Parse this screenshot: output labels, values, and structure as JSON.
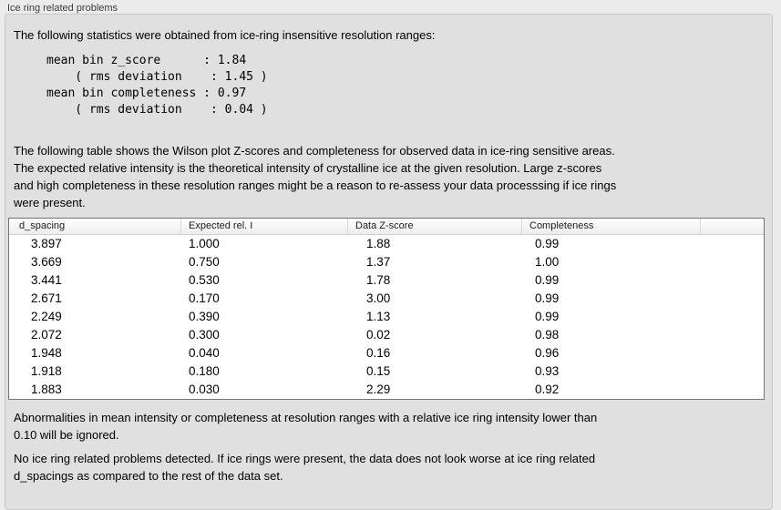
{
  "section": {
    "title": "Ice ring related problems"
  },
  "intro": "The following statistics were obtained from ice-ring insensitive resolution ranges:",
  "statistics": {
    "mean_bin_z_score": "1.84",
    "z_score_rms_deviation": "1.45",
    "mean_bin_completeness": "0.97",
    "completeness_rms_deviation": "0.04",
    "block_text": "mean bin z_score      : 1.84\n    ( rms deviation    : 1.45 )\nmean bin completeness : 0.97\n    ( rms deviation    : 0.04 )"
  },
  "table_description": "The following table shows the Wilson plot Z-scores and completeness for observed data in ice-ring sensitive areas.\nThe expected relative intensity is the theoretical intensity of crystalline ice at the given resolution. Large z-scores\nand high completeness in these resolution ranges might be a reason to re-assess your data processsing if ice rings\nwere present.",
  "table": {
    "columns": [
      "d_spacing",
      "Expected rel. I",
      "Data Z-score",
      "Completeness"
    ],
    "rows": [
      [
        "3.897",
        "1.000",
        "1.88",
        "0.99"
      ],
      [
        "3.669",
        "0.750",
        "1.37",
        "1.00"
      ],
      [
        "3.441",
        "0.530",
        "1.78",
        "0.99"
      ],
      [
        "2.671",
        "0.170",
        "3.00",
        "0.99"
      ],
      [
        "2.249",
        "0.390",
        "1.13",
        "0.99"
      ],
      [
        "2.072",
        "0.300",
        "0.02",
        "0.98"
      ],
      [
        "1.948",
        "0.040",
        "0.16",
        "0.96"
      ],
      [
        "1.918",
        "0.180",
        "0.15",
        "0.93"
      ],
      [
        "1.883",
        "0.030",
        "2.29",
        "0.92"
      ]
    ]
  },
  "notes": {
    "ignore_threshold": "Abnormalities in mean intensity or completeness at resolution ranges with a relative ice ring intensity lower than\n0.10 will be ignored.",
    "conclusion": "No ice ring related problems detected. If ice rings were present, the data does not look worse at ice ring related\nd_spacings as compared to the rest of the data set."
  },
  "colors": {
    "page_background": "#ebebeb",
    "panel_background": "#e0e0e0",
    "panel_border": "#c9c9c9",
    "table_border": "#747474",
    "table_background": "#ffffff",
    "text": "#000000"
  }
}
